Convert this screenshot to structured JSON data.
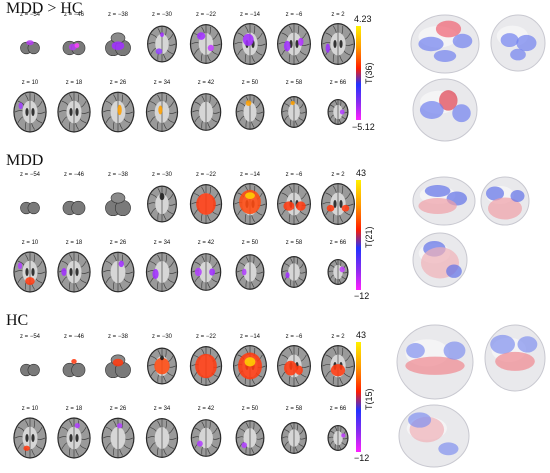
{
  "z_labels": [
    "z = −54",
    "z = −46",
    "z = −38",
    "z = −30",
    "z = −22",
    "z = −14",
    "z = −6",
    "z = 2",
    "z = 10",
    "z = 18",
    "z = 26",
    "z = 34",
    "z = 42",
    "z = 50",
    "z = 58",
    "z = 66"
  ],
  "panels": [
    {
      "title": "MDD > HC",
      "cb_max": "4.23",
      "cb_min": "−5.12",
      "cb_label": "T(36)"
    },
    {
      "title": "MDD",
      "cb_max": "43",
      "cb_min": "−12",
      "cb_label": "T(21)"
    },
    {
      "title": "HC",
      "cb_max": "43",
      "cb_min": "−12",
      "cb_label": "T(15)"
    }
  ]
}
